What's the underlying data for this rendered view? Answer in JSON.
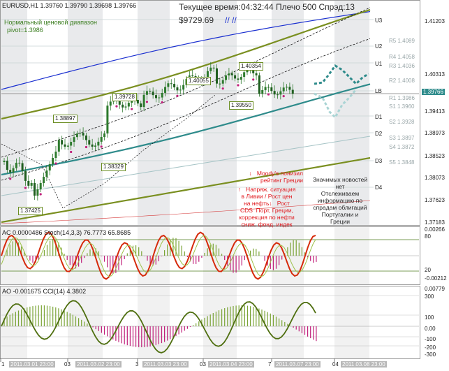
{
  "header": {
    "symbol_line": "EURUSD,H1  1.39760 1.39790 1.39698 1.39766",
    "indicator_name": "Нормальный ценовой диапазон",
    "pivot_label": "pivot=1.3986",
    "time_label": "Текущее время:04:32:44 Плечо 500 Спрэд:13",
    "equity_label": "$9729.69",
    "slash_label": "// //"
  },
  "price_axis": [
    "1.41203",
    "1.40313",
    "1.39413",
    "1.38973",
    "1.38523",
    "1.38073",
    "1.37623",
    "1.37183"
  ],
  "current_price": "1.39766",
  "level_labels": [
    {
      "text": "U3",
      "color": "#1a1a1a"
    },
    {
      "text": "U2",
      "color": "#1a1a1a"
    },
    {
      "text": "U1",
      "color": "#1a1a1a"
    },
    {
      "text": "LB",
      "color": "#1a1a1a"
    },
    {
      "text": "D1",
      "color": "#1a1a1a"
    },
    {
      "text": "D2",
      "color": "#1a1a1a"
    },
    {
      "text": "D3",
      "color": "#1a1a1a"
    },
    {
      "text": "D4",
      "color": "#1a1a1a"
    }
  ],
  "pivot_levels": [
    {
      "text": "R5 1.4089",
      "color": "#9aa7a9"
    },
    {
      "text": "R4 1.4058",
      "color": "#9aa7a9"
    },
    {
      "text": "R3 1.4036",
      "color": "#9aa7a9"
    },
    {
      "text": "R2 1.4008",
      "color": "#9aa7a9"
    },
    {
      "text": "R1 1.3986",
      "color": "#9aa7a9"
    },
    {
      "text": "S1 1.3960",
      "color": "#9aa7a9"
    },
    {
      "text": "S2 1.3928",
      "color": "#9aa7a9"
    },
    {
      "text": "S3 1.3897",
      "color": "#9aa7a9"
    },
    {
      "text": "S4 1.3872",
      "color": "#9aa7a9"
    },
    {
      "text": "S5 1.3848",
      "color": "#9aa7a9"
    }
  ],
  "price_tags": [
    "1.39728",
    "1.38897",
    "1.38329",
    "1.37425",
    "1.40055",
    "1.40354",
    "1.39550"
  ],
  "news": {
    "red_1": "↓   Moody's понизил\nрейтинг Греции",
    "red_2": "↑   Напряж. ситуация\nв Ливии / Рост цен\nна нефть↓   Рост\nCDS  Порт, Греции,\nкоррекция по нефти\nсниж. фонд. индек",
    "green_1": "Значимых новостей\nнет\nОтслеживаем\nинформацию по\nспрадам облигаций\nПортугалии и\nГреции"
  },
  "stoch_panel": {
    "title": "AC 0.0000486  Stoch(14,3,3) 76.7773 65.8685",
    "axis": [
      "0.00266",
      "80",
      "20",
      "-0.00212"
    ]
  },
  "cci_panel": {
    "title": "AO -0.001675  CCI(14) 4.3802",
    "axis": [
      "0.00779",
      "300",
      "100",
      "0.00",
      "-100",
      "-200",
      "-300"
    ]
  },
  "time_axis": [
    "1",
    "2011.03.01 23:00",
    "03",
    "2011.03.02 23:00",
    "3",
    "2011.03.03 23:00",
    "03",
    "2011.03.04 23:00",
    "7",
    "2011.03.07 23:00",
    "04",
    "2011.03.08 23:00"
  ]
}
